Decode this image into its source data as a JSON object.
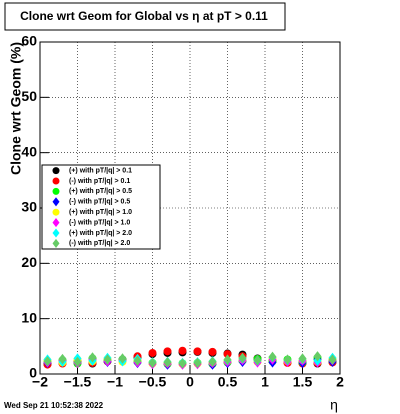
{
  "chart_data": {
    "type": "scatter",
    "title": "Clone wrt Geom for Global vs   η at pT > 0.11",
    "y_label": "Clone wrt Geom (%)",
    "x_label": "η",
    "timestamp": "Wed Sep 21 10:52:38 2022",
    "xlim": [
      -2,
      2
    ],
    "ylim": [
      0,
      60
    ],
    "xticks": [
      {
        "value": -2,
        "label": "−2"
      },
      {
        "value": -1.5,
        "label": "−1.5"
      },
      {
        "value": -1,
        "label": "−1"
      },
      {
        "value": -0.5,
        "label": "−0.5"
      },
      0,
      0.5,
      1,
      1.5,
      2
    ],
    "yticks": [
      0,
      10,
      20,
      30,
      40,
      50,
      60
    ],
    "grid": true,
    "legend": "left",
    "x": [
      -1.9,
      -1.7,
      -1.5,
      -1.3,
      -1.1,
      -0.9,
      -0.7,
      -0.5,
      -0.3,
      -0.1,
      0.1,
      0.3,
      0.5,
      0.7,
      0.9,
      1.1,
      1.3,
      1.5,
      1.7,
      1.9
    ],
    "series": [
      {
        "name": "(+) with pT/|q| > 0.1",
        "color": "#000000",
        "marker": "circle",
        "values": [
          1.8,
          2.0,
          2.2,
          1.9,
          2.4,
          2.6,
          3.0,
          3.6,
          3.8,
          3.9,
          4.0,
          3.8,
          3.7,
          3.5,
          2.8,
          2.4,
          2.1,
          2.0,
          1.9,
          2.2
        ]
      },
      {
        "name": "(-) with pT/|q| > 0.1",
        "color": "#ff0000",
        "marker": "circle",
        "values": [
          1.7,
          1.9,
          2.1,
          2.0,
          2.3,
          2.5,
          3.2,
          3.8,
          4.1,
          4.2,
          4.1,
          4.0,
          3.6,
          3.2,
          2.7,
          2.3,
          2.0,
          1.9,
          2.0,
          2.1
        ]
      },
      {
        "name": "(+) with pT/|q| > 0.5",
        "color": "#00ff00",
        "marker": "circle",
        "values": [
          2.2,
          2.5,
          1.9,
          2.8,
          2.4,
          2.6,
          2.2,
          2.0,
          1.8,
          1.9,
          2.0,
          1.8,
          2.1,
          2.4,
          2.7,
          2.3,
          2.6,
          2.1,
          2.9,
          2.4
        ]
      },
      {
        "name": "(-) with pT/|q| > 0.5",
        "color": "#0000ff",
        "marker": "diamond",
        "values": [
          2.0,
          2.3,
          2.1,
          2.5,
          2.2,
          2.4,
          2.0,
          1.9,
          1.7,
          1.8,
          1.9,
          1.7,
          2.0,
          2.2,
          2.5,
          2.1,
          2.4,
          2.0,
          2.6,
          2.2
        ]
      },
      {
        "name": "(+) with pT/|q| > 1.0",
        "color": "#ffff00",
        "marker": "circle",
        "values": [
          2.4,
          2.1,
          2.6,
          2.3,
          2.7,
          2.2,
          2.5,
          1.9,
          2.0,
          1.8,
          1.9,
          2.1,
          2.3,
          2.6,
          2.2,
          2.8,
          2.3,
          2.5,
          2.2,
          2.7
        ]
      },
      {
        "name": "(-) with pT/|q| > 1.0",
        "color": "#ff00ff",
        "marker": "diamond",
        "values": [
          2.1,
          2.4,
          2.0,
          2.6,
          2.3,
          2.5,
          2.1,
          1.8,
          1.9,
          1.7,
          1.8,
          2.0,
          2.2,
          2.5,
          2.1,
          2.6,
          2.2,
          2.4,
          2.1,
          2.5
        ]
      },
      {
        "name": "(+) with pT/|q| > 2.0",
        "color": "#00ffff",
        "marker": "diamond",
        "values": [
          2.6,
          2.2,
          2.8,
          2.4,
          2.9,
          2.3,
          2.7,
          2.1,
          2.2,
          2.0,
          2.1,
          2.3,
          2.5,
          2.8,
          2.4,
          3.0,
          2.5,
          2.7,
          2.4,
          2.9
        ]
      },
      {
        "name": "(-) with pT/|q| > 2.0",
        "color": "#66cc66",
        "marker": "diamond",
        "values": [
          2.3,
          2.7,
          2.2,
          3.0,
          2.6,
          2.8,
          2.4,
          2.0,
          2.1,
          1.9,
          2.0,
          2.2,
          2.6,
          2.9,
          2.5,
          3.1,
          2.6,
          2.8,
          3.2,
          2.6
        ]
      }
    ]
  }
}
